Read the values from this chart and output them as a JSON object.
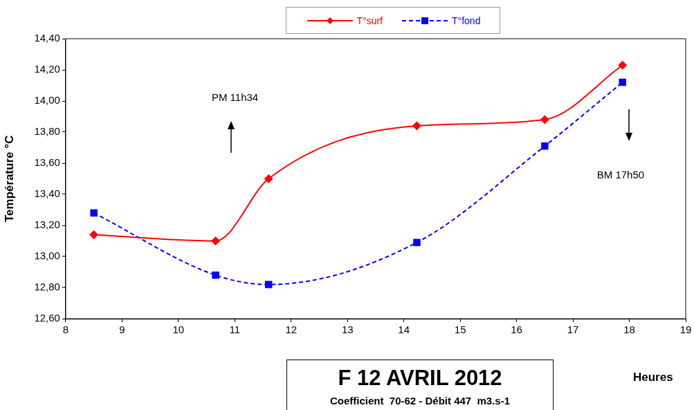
{
  "chart_data": {
    "type": "line",
    "title": "F 12 AVRIL 2012",
    "subtitle": "Coefficient  70-62 - Débit 447  m3.s-1",
    "xlabel": "Heures",
    "ylabel": "Température °C",
    "x": [
      8.5,
      10.66,
      11.6,
      14.23,
      16.5,
      17.88
    ],
    "series": [
      {
        "name": "T°surf",
        "color": "#ff0000",
        "values": [
          13.14,
          13.1,
          13.5,
          13.84,
          13.88,
          14.23
        ],
        "marker": "diamond",
        "line_style": "solid"
      },
      {
        "name": "T°fond",
        "color": "#0000ff",
        "values": [
          13.28,
          12.88,
          12.82,
          13.09,
          13.71,
          14.12
        ],
        "marker": "square",
        "line_style": "dashed"
      }
    ],
    "xlim": [
      8,
      19
    ],
    "xticks": [
      8,
      9,
      10,
      11,
      12,
      13,
      14,
      15,
      16,
      17,
      18,
      19
    ],
    "ylim": [
      12.6,
      14.4
    ],
    "yticks": [
      {
        "value": 12.6,
        "label": "12,60"
      },
      {
        "value": 12.8,
        "label": "12,80"
      },
      {
        "value": 13.0,
        "label": "13,00"
      },
      {
        "value": 13.2,
        "label": "13,20"
      },
      {
        "value": 13.4,
        "label": "13,40"
      },
      {
        "value": 13.6,
        "label": "13,60"
      },
      {
        "value": 13.8,
        "label": "13,80"
      },
      {
        "value": 14.0,
        "label": "14,00"
      },
      {
        "value": 14.2,
        "label": "14,20"
      },
      {
        "value": 14.4,
        "label": "14,40"
      }
    ],
    "annotations": [
      "PM 11h34",
      "BM 17h50"
    ],
    "grid": false,
    "legend": "top"
  }
}
